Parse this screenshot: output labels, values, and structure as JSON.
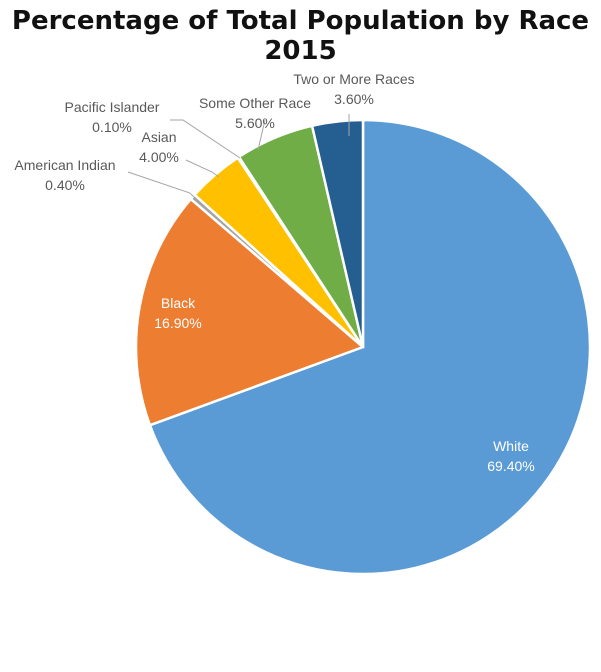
{
  "chart_data": {
    "type": "pie",
    "title": "Percentage of Total Population by Race 2015",
    "slices": [
      {
        "label": "White",
        "value": 69.4,
        "value_label": "69.40%",
        "color": "#5B9BD5"
      },
      {
        "label": "Black",
        "value": 16.9,
        "value_label": "16.90%",
        "color": "#ED7D31"
      },
      {
        "label": "American Indian",
        "value": 0.4,
        "value_label": "0.40%",
        "color": "#A5A5A5"
      },
      {
        "label": "Asian",
        "value": 4.0,
        "value_label": "4.00%",
        "color": "#FFC000"
      },
      {
        "label": "Pacific Islander",
        "value": 0.1,
        "value_label": "0.10%",
        "color": "#4472C4"
      },
      {
        "label": "Some Other Race",
        "value": 5.6,
        "value_label": "5.60%",
        "color": "#70AD47"
      },
      {
        "label": "Two or More Races",
        "value": 3.6,
        "value_label": "3.60%",
        "color": "#255E91"
      }
    ]
  }
}
